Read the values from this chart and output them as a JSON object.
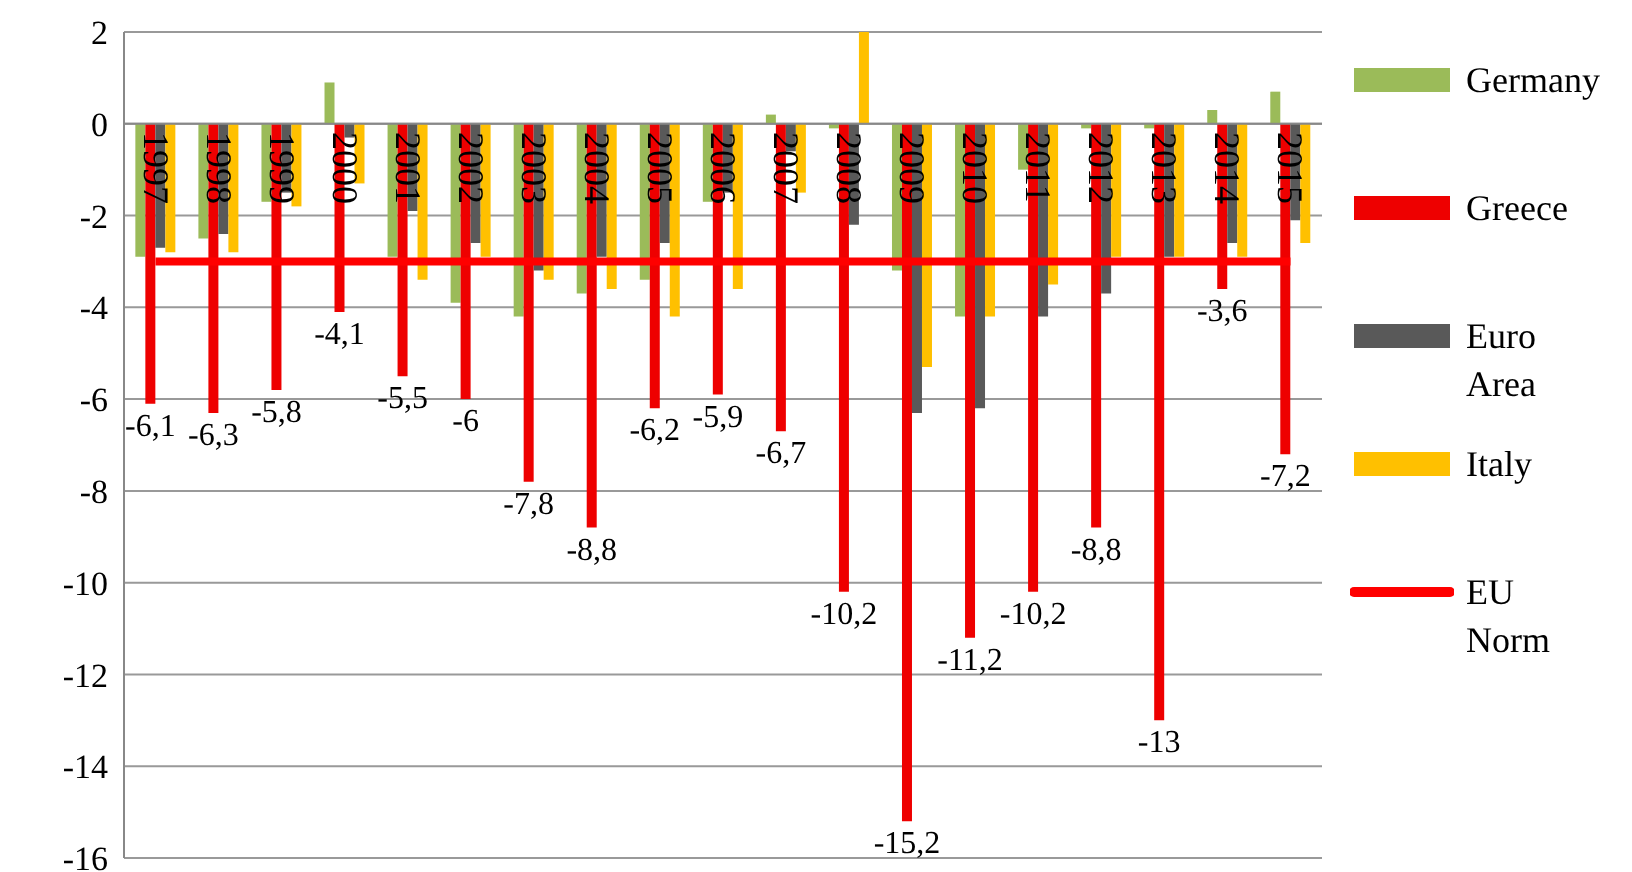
{
  "chart_data": {
    "type": "bar",
    "categories": [
      "1997",
      "1998",
      "1999",
      "2000",
      "2001",
      "2002",
      "2003",
      "2004",
      "2005",
      "2006",
      "2007",
      "2008",
      "2009",
      "2010",
      "2011",
      "2012",
      "2013",
      "2014",
      "2015"
    ],
    "series": [
      {
        "name": "Germany",
        "color": "#9bbb59",
        "values": [
          -2.9,
          -2.5,
          -1.7,
          0.9,
          -2.9,
          -3.9,
          -4.2,
          -3.7,
          -3.4,
          -1.7,
          0.2,
          -0.1,
          -3.2,
          -4.2,
          -1.0,
          -0.1,
          -0.1,
          0.3,
          0.7
        ]
      },
      {
        "name": "Greece",
        "color": "#ee0000",
        "values": [
          -6.1,
          -6.3,
          -5.8,
          -4.1,
          -5.5,
          -6,
          -7.8,
          -8.8,
          -6.2,
          -5.9,
          -6.7,
          -10.2,
          -15.2,
          -11.2,
          -10.2,
          -8.8,
          -13,
          -3.6,
          -7.2
        ],
        "value_labels": [
          "-6,1",
          "-6,3",
          "-5,8",
          "-4,1",
          "-5,5",
          "-6",
          "-7,8",
          "-8,8",
          "-6,2",
          "-5,9",
          "-6,7",
          "-10,2",
          "-15,2",
          "-11,2",
          "-10,2",
          "-8,8",
          "-13",
          "-3,6",
          "-7,2"
        ]
      },
      {
        "name": "Euro Area",
        "color": "#595959",
        "values": [
          -2.7,
          -2.4,
          -1.5,
          -0.3,
          -1.9,
          -2.6,
          -3.2,
          -2.9,
          -2.6,
          -1.5,
          -0.6,
          -2.2,
          -6.3,
          -6.2,
          -4.2,
          -3.7,
          -2.9,
          -2.6,
          -2.1
        ]
      },
      {
        "name": "Italy",
        "color": "#ffc000",
        "values": [
          -2.8,
          -2.8,
          -1.8,
          -1.3,
          -3.4,
          -2.9,
          -3.4,
          -3.6,
          -4.2,
          -3.6,
          -1.5,
          2,
          -5.3,
          -4.2,
          -3.5,
          -2.9,
          -2.9,
          -2.9,
          -2.6
        ]
      },
      {
        "name": "EU Norm",
        "type": "line",
        "color": "#ff0000",
        "values": [
          -3,
          -3,
          -3,
          -3,
          -3,
          -3,
          -3,
          -3,
          -3,
          -3,
          -3,
          -3,
          -3,
          -3,
          -3,
          -3,
          -3,
          -3,
          -3
        ]
      }
    ],
    "ylim": [
      -16,
      2
    ],
    "yticks": [
      2,
      0,
      -2,
      -4,
      -6,
      -8,
      -10,
      -12,
      -14,
      -16
    ],
    "grid": "y",
    "legend": "right"
  }
}
